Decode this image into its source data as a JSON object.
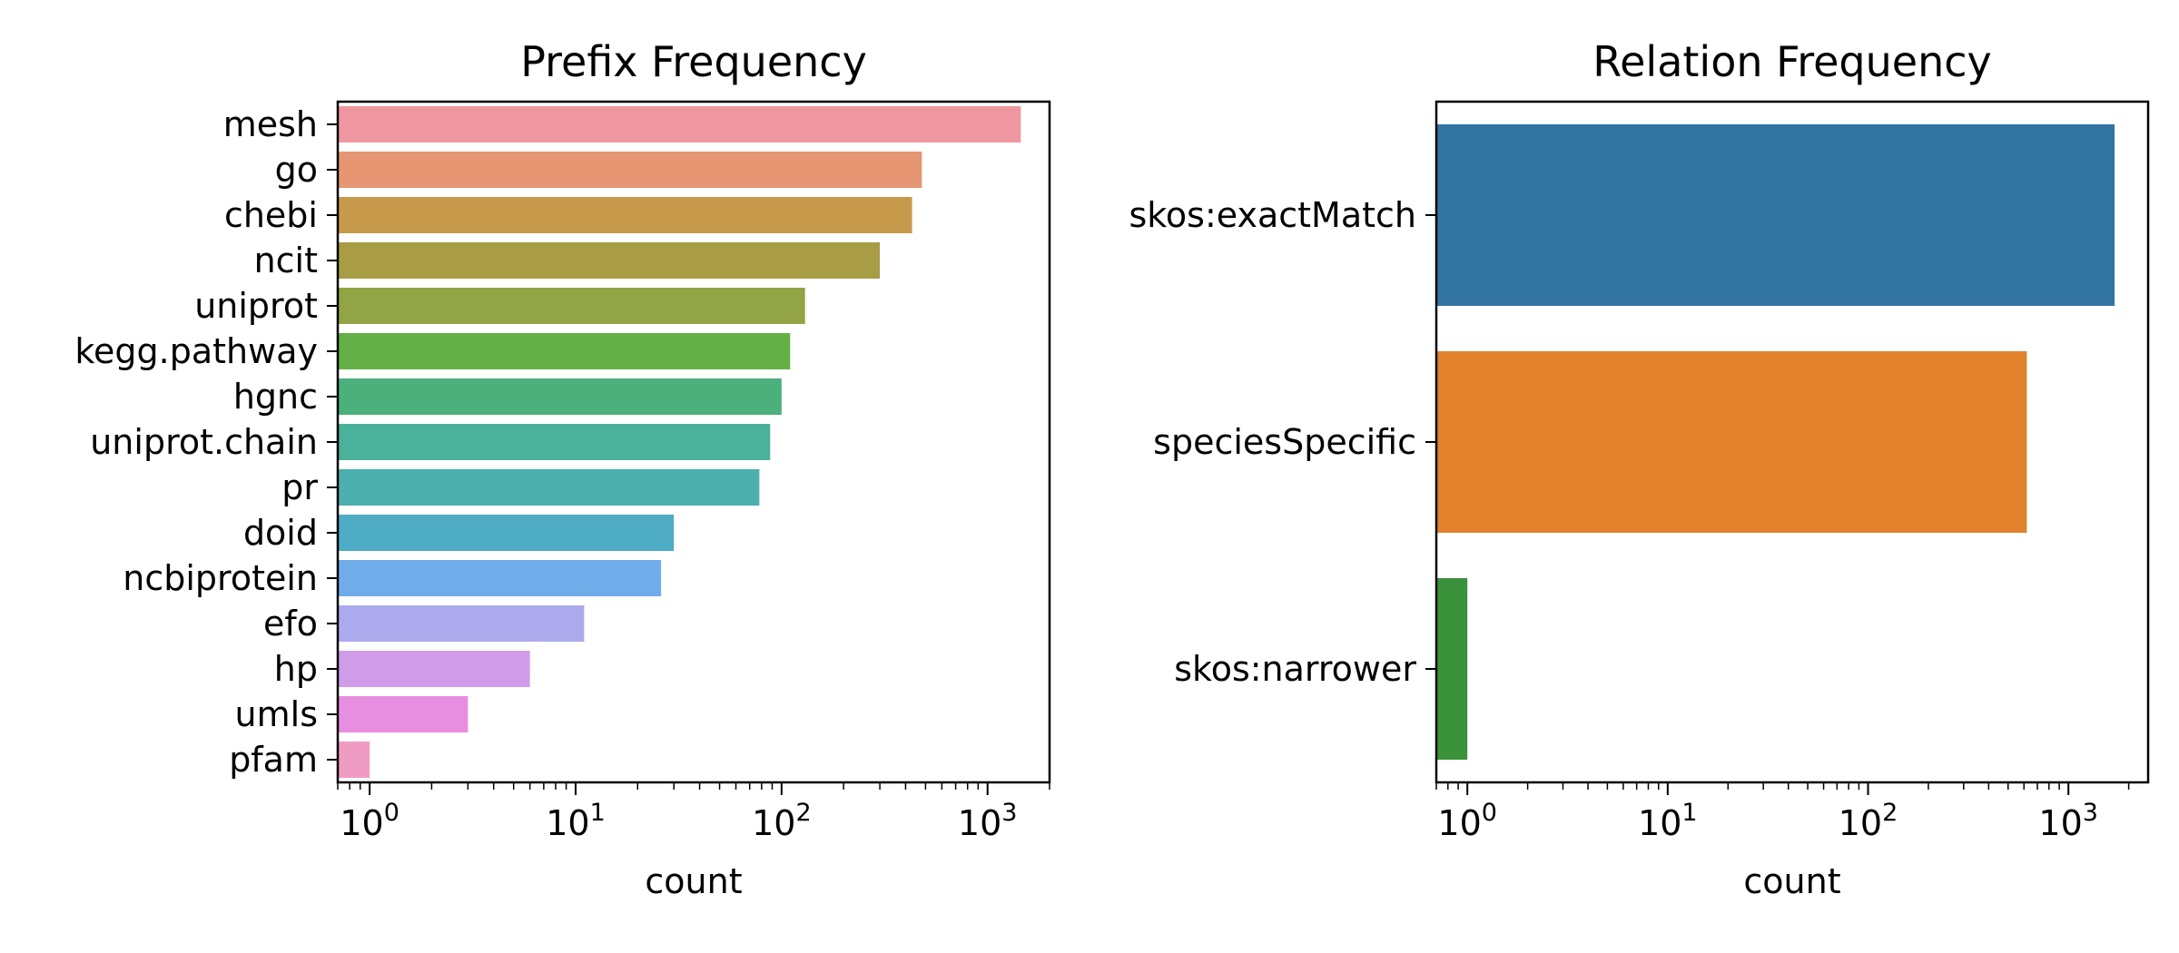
{
  "chart_data": [
    {
      "type": "bar",
      "orientation": "horizontal",
      "title": "Prefix Frequency",
      "xlabel": "count",
      "ylabel": "",
      "xscale": "log",
      "xlim": [
        0.7,
        2000
      ],
      "x_tick_base": "10",
      "x_tick_exponents": [
        "0",
        "1",
        "2",
        "3"
      ],
      "categories": [
        "mesh",
        "go",
        "chebi",
        "ncit",
        "uniprot",
        "kegg.pathway",
        "hgnc",
        "uniprot.chain",
        "pr",
        "doid",
        "ncbiprotein",
        "efo",
        "hp",
        "umls",
        "pfam"
      ],
      "values": [
        1450,
        480,
        430,
        300,
        130,
        110,
        100,
        88,
        78,
        30,
        26,
        11,
        6,
        3,
        1
      ],
      "colors": [
        "#ee97a0",
        "#e69673",
        "#c7994a",
        "#a89c45",
        "#92a445",
        "#64b046",
        "#4bb07b",
        "#4ab19b",
        "#4bafae",
        "#4eacc4",
        "#70acea",
        "#acaaed",
        "#d09be9",
        "#e88ee0",
        "#f09bc2"
      ]
    },
    {
      "type": "bar",
      "orientation": "horizontal",
      "title": "Relation Frequency",
      "xlabel": "count",
      "ylabel": "",
      "xscale": "log",
      "xlim": [
        0.7,
        2500
      ],
      "x_tick_base": "10",
      "x_tick_exponents": [
        "0",
        "1",
        "2",
        "3"
      ],
      "categories": [
        "skos:exactMatch",
        "speciesSpecific",
        "skos:narrower"
      ],
      "values": [
        1700,
        620,
        1
      ],
      "colors": [
        "#3274a1",
        "#e1812c",
        "#3a923a"
      ]
    }
  ]
}
